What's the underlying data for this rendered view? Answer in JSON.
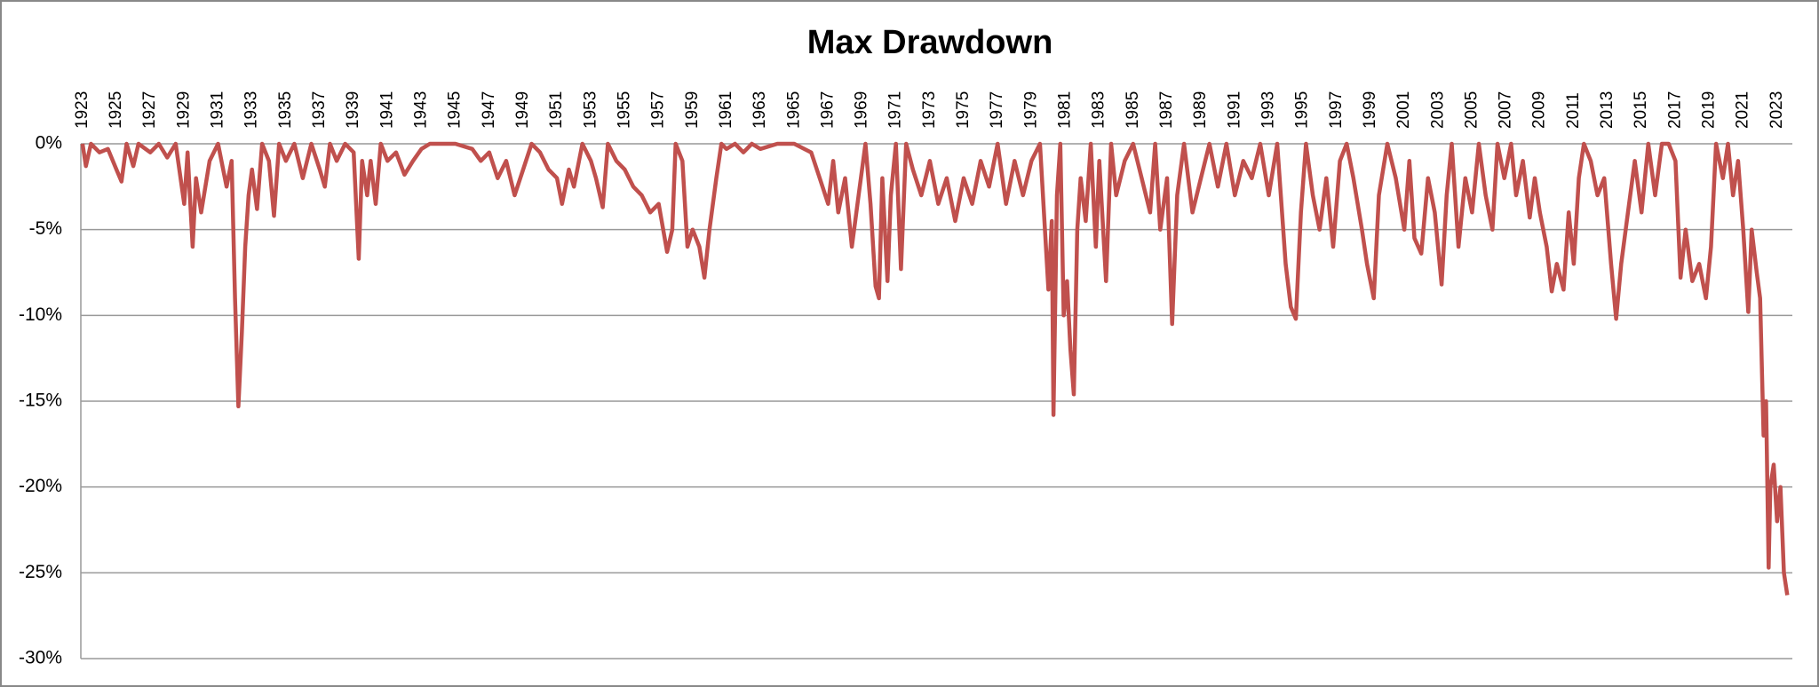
{
  "chart_data": {
    "type": "line",
    "title": "Max Drawdown",
    "x": [
      1923,
      1923.2,
      1923.5,
      1924,
      1924.5,
      1925,
      1925.3,
      1925.6,
      1926,
      1926.3,
      1927,
      1927.5,
      1928,
      1928.5,
      1929,
      1929.2,
      1929.5,
      1929.7,
      1930,
      1930.5,
      1931,
      1931.5,
      1931.8,
      1932,
      1932.2,
      1932.4,
      1932.6,
      1932.8,
      1933,
      1933.3,
      1933.6,
      1934,
      1934.3,
      1934.6,
      1935,
      1935.5,
      1936,
      1936.5,
      1937,
      1937.3,
      1937.6,
      1938,
      1938.5,
      1939,
      1939.3,
      1939.5,
      1939.8,
      1940,
      1940.3,
      1940.6,
      1941,
      1941.5,
      1942,
      1942.5,
      1943,
      1943.5,
      1944,
      1945,
      1946,
      1946.5,
      1947,
      1947.5,
      1948,
      1948.5,
      1949,
      1949.5,
      1950,
      1950.5,
      1951,
      1951.3,
      1951.7,
      1952,
      1952.5,
      1953,
      1953.3,
      1953.7,
      1954,
      1954.5,
      1955,
      1955.5,
      1956,
      1956.5,
      1957,
      1957.5,
      1957.8,
      1958,
      1958.4,
      1958.7,
      1959,
      1959.4,
      1959.7,
      1960,
      1960.4,
      1960.7,
      1961,
      1961.5,
      1962,
      1962.5,
      1963,
      1964,
      1965,
      1966,
      1966.5,
      1967,
      1967.3,
      1967.6,
      1968,
      1968.4,
      1968.8,
      1969.2,
      1969.5,
      1969.8,
      1970,
      1970.2,
      1970.5,
      1970.7,
      1971,
      1971.3,
      1971.6,
      1972,
      1972.5,
      1973,
      1973.5,
      1974,
      1974.5,
      1975,
      1975.5,
      1976,
      1976.5,
      1977,
      1977.5,
      1978,
      1978.5,
      1979,
      1979.5,
      1980,
      1980.2,
      1980.3,
      1980.5,
      1980.7,
      1980.9,
      1981.1,
      1981.3,
      1981.5,
      1981.7,
      1981.9,
      1982.2,
      1982.5,
      1982.8,
      1983,
      1983.4,
      1983.7,
      1984,
      1984.5,
      1985,
      1985.5,
      1986,
      1986.3,
      1986.6,
      1987,
      1987.3,
      1987.6,
      1988,
      1988.5,
      1989,
      1989.5,
      1990,
      1990.5,
      1991,
      1991.5,
      1992,
      1992.5,
      1993,
      1993.5,
      1994,
      1994.3,
      1994.6,
      1994.9,
      1995.2,
      1995.6,
      1996,
      1996.4,
      1996.8,
      1997.2,
      1997.6,
      1998,
      1998.5,
      1998.8,
      1999.2,
      1999.5,
      2000,
      2000.5,
      2001,
      2001.3,
      2001.6,
      2002,
      2002.4,
      2002.8,
      2003.2,
      2003.5,
      2003.8,
      2004.2,
      2004.6,
      2005,
      2005.4,
      2005.8,
      2006.2,
      2006.5,
      2006.9,
      2007.3,
      2007.6,
      2008,
      2008.4,
      2008.7,
      2009,
      2009.4,
      2009.7,
      2010,
      2010.4,
      2010.7,
      2011,
      2011.3,
      2011.6,
      2012,
      2012.4,
      2012.8,
      2013.2,
      2013.5,
      2013.8,
      2014.2,
      2014.6,
      2015,
      2015.4,
      2015.8,
      2016.2,
      2016.6,
      2017,
      2017.3,
      2017.6,
      2018,
      2018.4,
      2018.8,
      2019.1,
      2019.4,
      2019.8,
      2020.1,
      2020.4,
      2020.7,
      2021,
      2021.3,
      2021.5,
      2021.8,
      2022,
      2022.2,
      2022.35,
      2022.5,
      2022.6,
      2022.8,
      2023,
      2023.2,
      2023.4,
      2023.6
    ],
    "series": [
      {
        "name": "Max Drawdown",
        "color": "#c0504d",
        "values": [
          0,
          -1.3,
          0,
          -0.5,
          -0.3,
          -1.5,
          -2.2,
          0,
          -1.3,
          0,
          -0.5,
          0,
          -0.8,
          0,
          -3.5,
          -0.5,
          -6,
          -2,
          -4,
          -1,
          0,
          -2.5,
          -1,
          -9,
          -15.3,
          -11,
          -6,
          -3,
          -1.5,
          -3.8,
          0,
          -1,
          -4.2,
          0,
          -1,
          0,
          -2,
          0,
          -1.5,
          -2.5,
          0,
          -1,
          0,
          -0.5,
          -6.7,
          -1,
          -3,
          -1,
          -3.5,
          0,
          -1,
          -0.5,
          -1.8,
          -1,
          -0.3,
          0,
          0,
          0,
          -0.3,
          -1,
          -0.5,
          -2,
          -1,
          -3,
          -1.5,
          0,
          -0.5,
          -1.5,
          -2,
          -3.5,
          -1.5,
          -2.5,
          0,
          -1,
          -2,
          -3.7,
          0,
          -1,
          -1.5,
          -2.5,
          -3,
          -4,
          -3.5,
          -6.3,
          -5,
          0,
          -1,
          -6,
          -5,
          -6,
          -7.8,
          -5,
          -2,
          0,
          -0.3,
          0,
          -0.5,
          0,
          -0.3,
          0,
          0,
          -0.5,
          -2,
          -3.5,
          -1,
          -4,
          -2,
          -6,
          -3,
          0,
          -3.5,
          -8.3,
          -9,
          -2,
          -8,
          -3,
          0,
          -7.3,
          0,
          -1.5,
          -3,
          -1,
          -3.5,
          -2,
          -4.5,
          -2,
          -3.5,
          -1,
          -2.5,
          0,
          -3.5,
          -1,
          -3,
          -1,
          0,
          -8.5,
          -4.5,
          -15.8,
          -3,
          0,
          -10,
          -8,
          -12,
          -14.6,
          -5,
          -2,
          -4.5,
          0,
          -6,
          -1,
          -8,
          0,
          -3,
          -1,
          0,
          -2,
          -4,
          0,
          -5,
          -2,
          -10.5,
          -3,
          0,
          -4,
          -2,
          0,
          -2.5,
          0,
          -3,
          -1,
          -2,
          0,
          -3,
          0,
          -7,
          -9.5,
          -10.2,
          -4,
          0,
          -3,
          -5,
          -2,
          -6,
          -1,
          0,
          -2,
          -5,
          -7,
          -9,
          -3,
          0,
          -2,
          -5,
          -1,
          -5.5,
          -6.4,
          -2,
          -4,
          -8.2,
          -3,
          0,
          -6,
          -2,
          -4,
          0,
          -3,
          -5,
          0,
          -2,
          0,
          -3,
          -1,
          -4.3,
          -2,
          -4,
          -6,
          -8.6,
          -7,
          -8.5,
          -4,
          -7,
          -2,
          0,
          -1,
          -3,
          -2,
          -7,
          -10.2,
          -7,
          -4,
          -1,
          -4,
          0,
          -3,
          0,
          0,
          -1,
          -7.8,
          -5,
          -8,
          -7,
          -9,
          -6,
          0,
          -2,
          0,
          -3,
          -1,
          -5,
          -9.8,
          -5,
          -7.5,
          -9,
          -17,
          -15,
          -24.7,
          -20,
          -18.7,
          -22,
          -20,
          -25,
          -26.3
        ]
      }
    ],
    "xlim": [
      1922.9,
      2023.9
    ],
    "xticks": [
      1923,
      1925,
      1927,
      1929,
      1931,
      1933,
      1935,
      1937,
      1939,
      1941,
      1943,
      1945,
      1947,
      1949,
      1951,
      1953,
      1955,
      1957,
      1959,
      1961,
      1963,
      1965,
      1967,
      1969,
      1971,
      1973,
      1975,
      1977,
      1979,
      1981,
      1983,
      1985,
      1987,
      1989,
      1991,
      1993,
      1995,
      1997,
      1999,
      2001,
      2003,
      2005,
      2007,
      2009,
      2011,
      2013,
      2015,
      2017,
      2019,
      2021,
      2023
    ],
    "ylim": [
      -30,
      0
    ],
    "yticks": [
      {
        "value": 0,
        "label": "0%"
      },
      {
        "value": -5,
        "label": "-5%"
      },
      {
        "value": -10,
        "label": "-10%"
      },
      {
        "value": -15,
        "label": "-15%"
      },
      {
        "value": -20,
        "label": "-20%"
      },
      {
        "value": -25,
        "label": "-25%"
      },
      {
        "value": -30,
        "label": "-30%"
      }
    ],
    "grid": true
  }
}
